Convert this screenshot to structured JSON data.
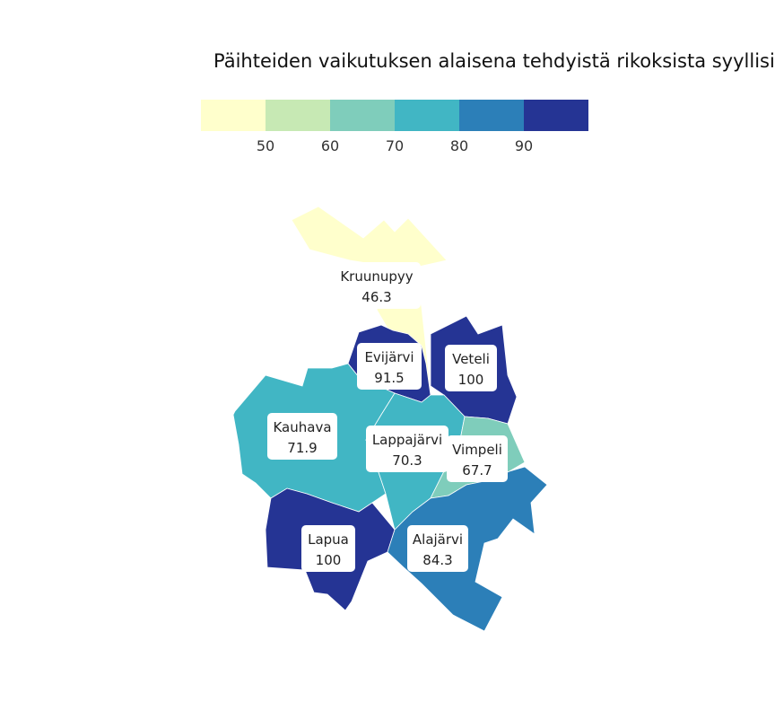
{
  "title": "Päihteiden vaikutuksen alaisena tehdyistä rikoksista syyllisik",
  "legend": {
    "colors": [
      "#ffffcc",
      "#c7e9b4",
      "#7fcdbb",
      "#41b6c4",
      "#2c7fb8",
      "#253494"
    ],
    "ticks": [
      "50",
      "60",
      "70",
      "80",
      "90"
    ]
  },
  "regions": [
    {
      "name": "Kruunupyy",
      "value": "46.3",
      "color": "#ffffcc"
    },
    {
      "name": "Evijärvi",
      "value": "91.5",
      "color": "#253494"
    },
    {
      "name": "Veteli",
      "value": "100",
      "color": "#253494"
    },
    {
      "name": "Kauhava",
      "value": "71.9",
      "color": "#41b6c4"
    },
    {
      "name": "Lappajärvi",
      "value": "70.3",
      "color": "#41b6c4"
    },
    {
      "name": "Vimpeli",
      "value": "67.7",
      "color": "#7fcdbb"
    },
    {
      "name": "Lapua",
      "value": "100",
      "color": "#253494"
    },
    {
      "name": "Alajärvi",
      "value": "84.3",
      "color": "#2c7fb8"
    }
  ]
}
